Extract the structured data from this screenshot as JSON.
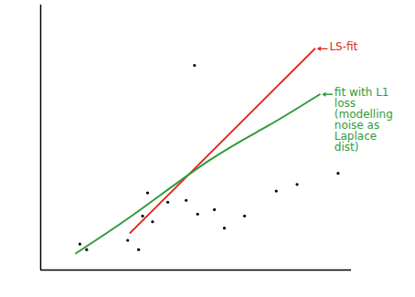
{
  "chart_data": {
    "type": "scatter",
    "xlim": [
      0,
      100
    ],
    "ylim": [
      0,
      100
    ],
    "tick_labels": false,
    "color": "#000000",
    "x": [
      49.5,
      95.7,
      75.8,
      82.5,
      34.4,
      40.9,
      46.8,
      50.5,
      55.9,
      65.6,
      59.1,
      32.8,
      36.0,
      28.0,
      31.5,
      12.6,
      14.8
    ],
    "values": [
      77.2,
      36.5,
      29.8,
      32.3,
      29.1,
      25.6,
      26.3,
      21.1,
      22.8,
      20.4,
      15.8,
      20.4,
      18.2,
      11.2,
      7.7,
      9.8,
      7.7
    ],
    "series": [
      {
        "name": "LS-fit",
        "type": "line",
        "color": "#e3241b",
        "x": [
          28.8,
          88.2
        ],
        "values": [
          14.0,
          83.5
        ]
      },
      {
        "name": "fit with L1 loss (modelling noise as Laplace dist)",
        "type": "line",
        "color": "#2f9b37",
        "x": [
          11.3,
          30.1,
          54.3,
          73.1,
          89.8
        ],
        "values": [
          6.3,
          21.1,
          41.4,
          54.4,
          66.3
        ]
      }
    ]
  }
}
